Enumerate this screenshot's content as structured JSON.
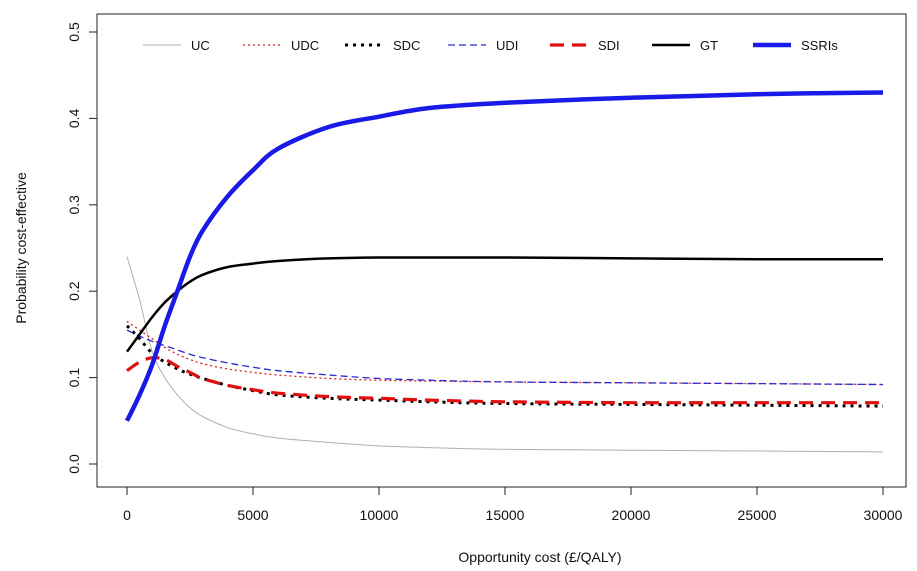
{
  "chart_data": {
    "type": "line",
    "title": "",
    "xlabel": "Opportunity cost (£/QALY)",
    "ylabel": "Probability cost-effective",
    "xlim": [
      0,
      30000
    ],
    "ylim": [
      0,
      0.5
    ],
    "x_ticks": [
      "0",
      "5000",
      "10000",
      "15000",
      "20000",
      "25000",
      "30000"
    ],
    "y_ticks": [
      "0.0",
      "0.1",
      "0.2",
      "0.3",
      "0.4",
      "0.5"
    ],
    "grid": false,
    "legend_position": "top, horizontal inside plot",
    "x": [
      0,
      500,
      1000,
      1500,
      2000,
      2500,
      3000,
      4000,
      5000,
      6000,
      8000,
      10000,
      12000,
      15000,
      20000,
      25000,
      30000
    ],
    "series": [
      {
        "name": "UC",
        "color": "#b0b0b0",
        "style": "solid-thin",
        "values": [
          0.24,
          0.19,
          0.13,
          0.1,
          0.08,
          0.065,
          0.055,
          0.042,
          0.035,
          0.03,
          0.025,
          0.021,
          0.019,
          0.017,
          0.016,
          0.015,
          0.014
        ]
      },
      {
        "name": "UDC",
        "color": "#d62020",
        "style": "dotted",
        "values": [
          0.165,
          0.155,
          0.145,
          0.135,
          0.127,
          0.121,
          0.116,
          0.11,
          0.106,
          0.103,
          0.099,
          0.097,
          0.096,
          0.095,
          0.094,
          0.093,
          0.092
        ]
      },
      {
        "name": "SDC",
        "color": "#000000",
        "style": "dotted-thick",
        "values": [
          0.16,
          0.145,
          0.128,
          0.118,
          0.11,
          0.104,
          0.099,
          0.091,
          0.085,
          0.08,
          0.076,
          0.074,
          0.072,
          0.07,
          0.069,
          0.068,
          0.067
        ]
      },
      {
        "name": "UDI",
        "color": "#2a2ad0",
        "style": "dashed",
        "values": [
          0.155,
          0.148,
          0.142,
          0.137,
          0.132,
          0.127,
          0.123,
          0.117,
          0.112,
          0.108,
          0.103,
          0.099,
          0.097,
          0.095,
          0.094,
          0.093,
          0.092
        ]
      },
      {
        "name": "SDI",
        "color": "#e01010",
        "style": "dashed-thick",
        "values": [
          0.108,
          0.118,
          0.123,
          0.121,
          0.113,
          0.106,
          0.099,
          0.091,
          0.086,
          0.082,
          0.078,
          0.076,
          0.074,
          0.072,
          0.071,
          0.071,
          0.071
        ]
      },
      {
        "name": "GT",
        "color": "#000000",
        "style": "solid",
        "values": [
          0.13,
          0.15,
          0.17,
          0.187,
          0.2,
          0.211,
          0.219,
          0.228,
          0.232,
          0.235,
          0.238,
          0.239,
          0.239,
          0.239,
          0.238,
          0.237,
          0.237
        ]
      },
      {
        "name": "SSRIs",
        "color": "#1a1ae8",
        "style": "solid-thick",
        "values": [
          0.05,
          0.08,
          0.115,
          0.16,
          0.2,
          0.24,
          0.27,
          0.31,
          0.34,
          0.365,
          0.39,
          0.402,
          0.412,
          0.418,
          0.424,
          0.428,
          0.43
        ]
      }
    ]
  }
}
